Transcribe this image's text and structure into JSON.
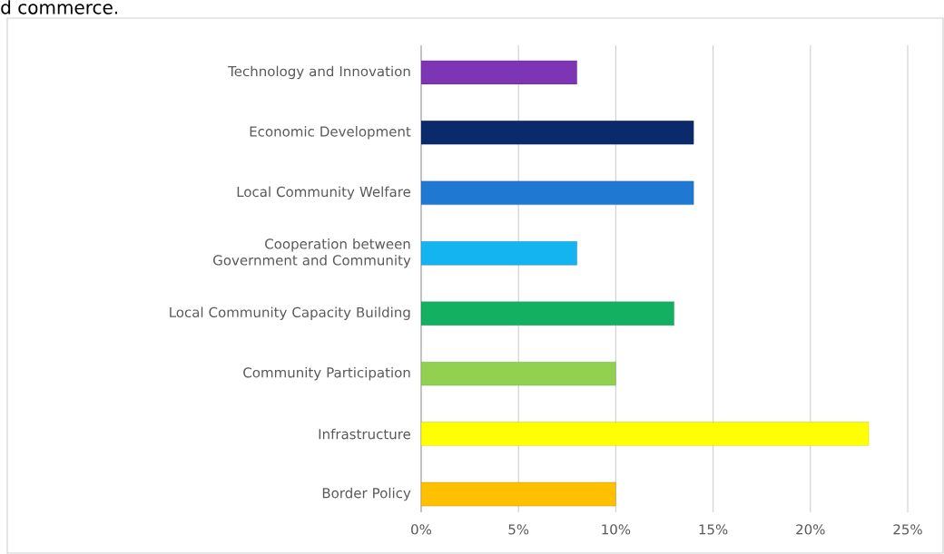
{
  "chart_data": {
    "type": "bar",
    "orientation": "horizontal",
    "categories": [
      "Technology and Innovation",
      "Economic Development",
      "Local Community Welfare",
      "Cooperation between Government and Community",
      "Local Community Capacity Building",
      "Community Participation",
      "Infrastructure",
      "Border Policy"
    ],
    "values": [
      8,
      14,
      14,
      8,
      13,
      10,
      23,
      10
    ],
    "colors": [
      "#7d35b5",
      "#0b2a6b",
      "#1f78d1",
      "#14b4f0",
      "#12b060",
      "#92d050",
      "#ffff00",
      "#ffc000"
    ],
    "xlim": [
      0,
      25
    ],
    "xticks": [
      {
        "value": 0,
        "label": "0%"
      },
      {
        "value": 5,
        "label": "5%"
      },
      {
        "value": 10,
        "label": "10%"
      },
      {
        "value": 15,
        "label": "15%"
      },
      {
        "value": 20,
        "label": "20%"
      },
      {
        "value": 25,
        "label": "25%"
      }
    ],
    "grid": "x",
    "annotations": [
      "d commerce."
    ]
  }
}
